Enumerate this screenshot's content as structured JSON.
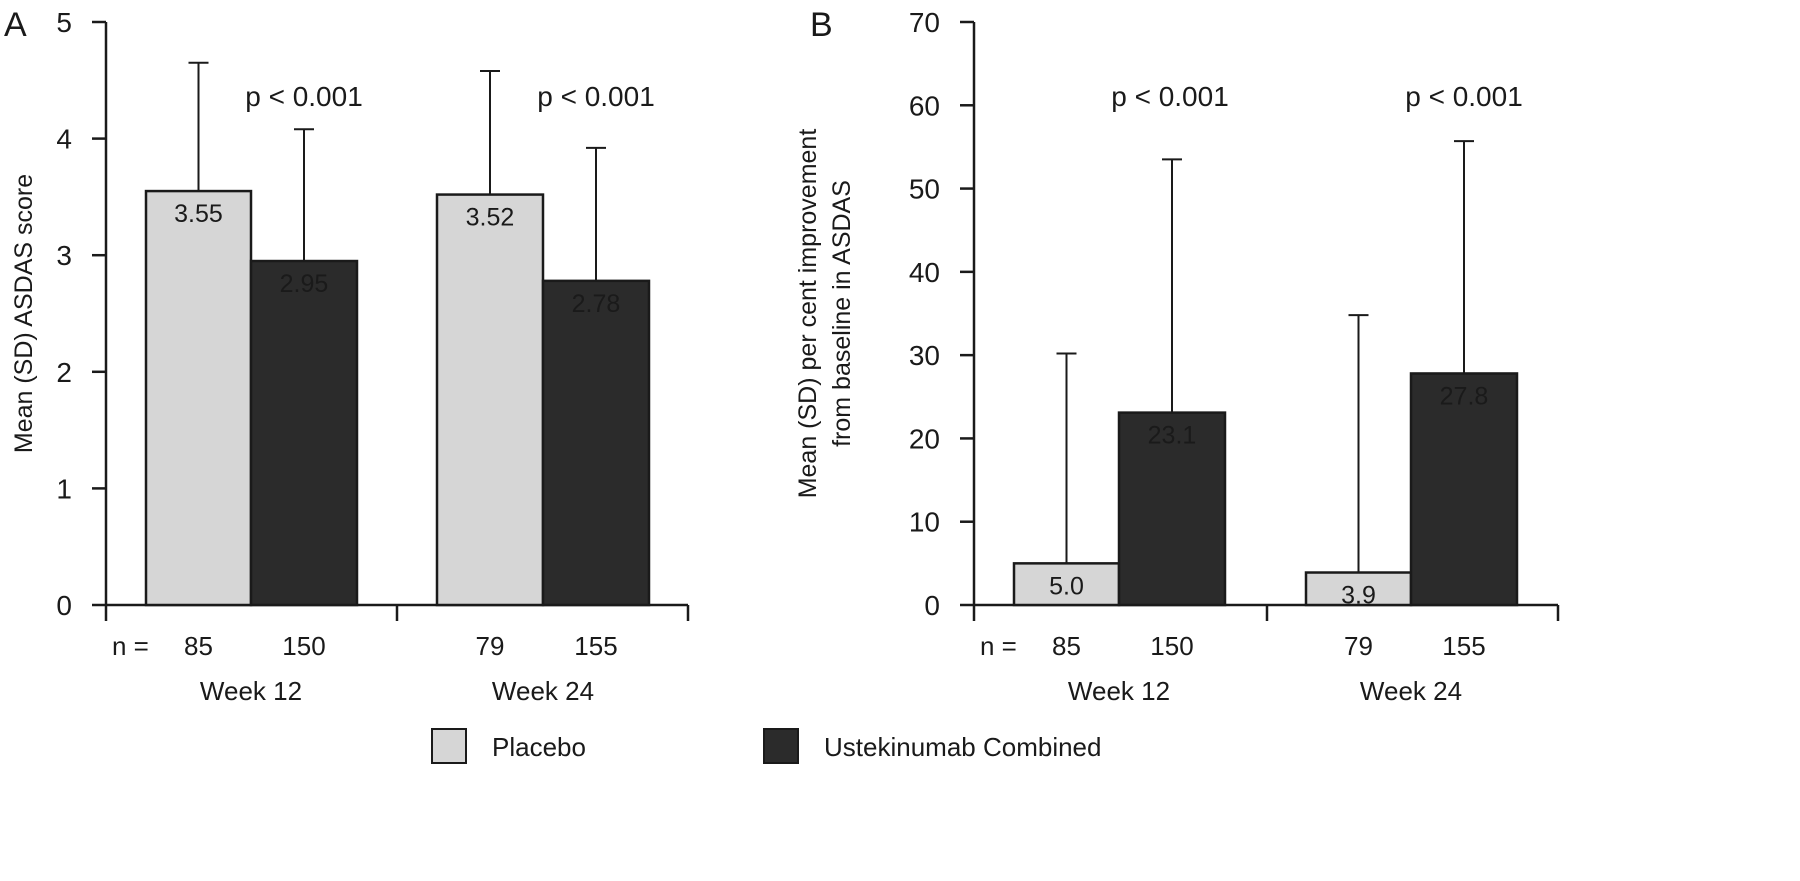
{
  "colors": {
    "placebo": "#d6d6d6",
    "ustekinumab": "#2b2b2b",
    "axis": "#1a1a1a",
    "label_on_dark": "#ffffff",
    "label_on_light": "#1a1a1a"
  },
  "legend": {
    "items": [
      {
        "name": "Placebo",
        "color": "#d6d6d6"
      },
      {
        "name": "Ustekinumab Combined",
        "color": "#2b2b2b"
      }
    ],
    "placement": "bottom-center"
  },
  "chart_data": [
    {
      "panel_label": "A",
      "type": "bar",
      "ylabel": "Mean (SD) ASDAS score",
      "ylabel_lines": [
        "Mean (SD) ASDAS score"
      ],
      "ylim": [
        0,
        5
      ],
      "yticks": [
        0,
        1,
        2,
        3,
        4,
        5
      ],
      "ytick_labels": [
        "0",
        "1",
        "2",
        "3",
        "4",
        "5"
      ],
      "n_prefix": "n =",
      "grid": false,
      "groups": [
        {
          "category": "Week 12",
          "p_value": "p < 0.001",
          "bars": [
            {
              "series": "Placebo",
              "value": 3.55,
              "value_label": "3.55",
              "sd_top": 4.65,
              "n": "85"
            },
            {
              "series": "Ustekinumab Combined",
              "value": 2.95,
              "value_label": "2.95",
              "sd_top": 4.08,
              "n": "150"
            }
          ]
        },
        {
          "category": "Week 24",
          "p_value": "p < 0.001",
          "bars": [
            {
              "series": "Placebo",
              "value": 3.52,
              "value_label": "3.52",
              "sd_top": 4.58,
              "n": "79"
            },
            {
              "series": "Ustekinumab Combined",
              "value": 2.78,
              "value_label": "2.78",
              "sd_top": 3.92,
              "n": "155"
            }
          ]
        }
      ]
    },
    {
      "panel_label": "B",
      "type": "bar",
      "ylabel": "Mean (SD) per cent improvement from baseline in ASDAS",
      "ylabel_lines": [
        "Mean (SD) per cent improvement",
        "from baseline in ASDAS"
      ],
      "ylim": [
        0,
        70
      ],
      "yticks": [
        0,
        10,
        20,
        30,
        40,
        50,
        60,
        70
      ],
      "ytick_labels": [
        "0",
        "10",
        "20",
        "30",
        "40",
        "50",
        "60",
        "70"
      ],
      "n_prefix": "n =",
      "grid": false,
      "groups": [
        {
          "category": "Week 12",
          "p_value": "p < 0.001",
          "bars": [
            {
              "series": "Placebo",
              "value": 5.0,
              "value_label": "5.0",
              "sd_top": 30.2,
              "n": "85"
            },
            {
              "series": "Ustekinumab Combined",
              "value": 23.1,
              "value_label": "23.1",
              "sd_top": 53.5,
              "n": "150"
            }
          ]
        },
        {
          "category": "Week 24",
          "p_value": "p < 0.001",
          "bars": [
            {
              "series": "Placebo",
              "value": 3.9,
              "value_label": "3.9",
              "sd_top": 34.8,
              "n": "79"
            },
            {
              "series": "Ustekinumab Combined",
              "value": 27.8,
              "value_label": "27.8",
              "sd_top": 55.7,
              "n": "155"
            }
          ]
        }
      ]
    }
  ]
}
